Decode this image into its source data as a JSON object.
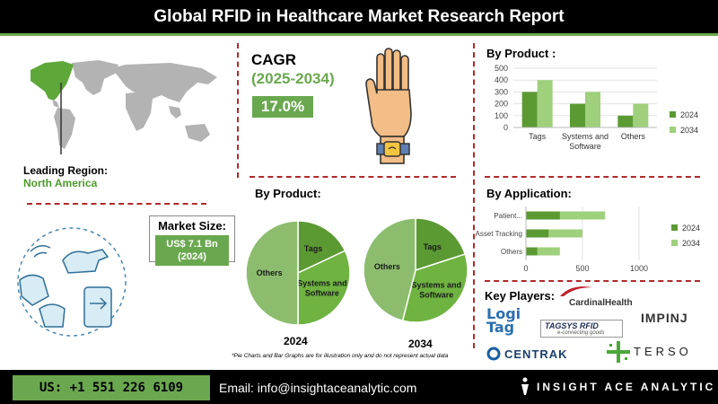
{
  "header": {
    "title": "Global RFID in Healthcare Market Research Report"
  },
  "region": {
    "label": "Leading Region:",
    "value": "North America"
  },
  "cagr": {
    "label": "CAGR",
    "period": "(2025-2034)",
    "value": "17.0%"
  },
  "market_size": {
    "label": "Market Size:",
    "value": "US$ 7.1 Bn\n(2024)"
  },
  "pie_section": {
    "title": "By Product:",
    "year_a": "2024",
    "year_b": "2034"
  },
  "note": "*Pie Charts and Bar Graphs are for illustration only and do not represent actual data",
  "by_product_bar": {
    "title": "By Product :"
  },
  "by_application": {
    "title": "By Application:"
  },
  "key_players": {
    "title": "Key Players:",
    "logos": [
      "CardinalHealth",
      "Logi Tag",
      "TAGSYS RFID",
      "e-connecting goods",
      "IMPINJ",
      "CENTRAK",
      "TERSO"
    ]
  },
  "footer": {
    "phone": "US: +1 551 226 6109",
    "email": "Email: info@insightaceanalytic.com",
    "brand": "INSIGHT ACE ANALYTIC"
  },
  "colors": {
    "dark_green": "#5b9a32",
    "light_green": "#9fd07c",
    "pie_mid": "#85b86a",
    "accent": "#6aa84f",
    "divider": "#b02a2a"
  },
  "chart_data": [
    {
      "type": "bar",
      "title": "By Product :",
      "categories": [
        "Tags",
        "Systems and Software",
        "Others"
      ],
      "series": [
        {
          "name": "2024",
          "values": [
            300,
            200,
            100
          ]
        },
        {
          "name": "2034",
          "values": [
            400,
            300,
            200
          ]
        }
      ],
      "ylim": [
        0,
        500
      ],
      "yticks": [
        0,
        100,
        200,
        300,
        400,
        500
      ],
      "legend": "right"
    },
    {
      "type": "bar",
      "orientation": "horizontal",
      "title": "By Application:",
      "categories": [
        "Patient...",
        "Asset Tracking",
        "Others"
      ],
      "series": [
        {
          "name": "2024",
          "values": [
            300,
            200,
            100
          ]
        },
        {
          "name": "2034",
          "values": [
            700,
            500,
            300
          ]
        }
      ],
      "xlim": [
        0,
        1000
      ],
      "xticks": [
        0,
        500,
        1000
      ],
      "legend": "right"
    },
    {
      "type": "pie",
      "label": "2024",
      "slices": [
        {
          "name": "Tags",
          "value": 18
        },
        {
          "name": "Systems and Software",
          "value": 32
        },
        {
          "name": "Others",
          "value": 50
        }
      ]
    },
    {
      "type": "pie",
      "label": "2034",
      "slices": [
        {
          "name": "Tags",
          "value": 20
        },
        {
          "name": "Systems and Software",
          "value": 34
        },
        {
          "name": "Others",
          "value": 46
        }
      ]
    }
  ]
}
